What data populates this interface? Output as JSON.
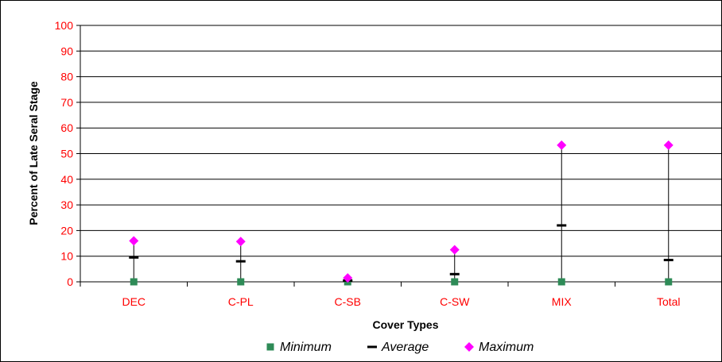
{
  "chart_data": {
    "type": "scatter",
    "title": "",
    "xlabel": "Cover Types",
    "ylabel": "Percent of Late Seral Stage",
    "ylim": [
      0,
      100
    ],
    "yticks": [
      "0",
      "10",
      "20",
      "30",
      "40",
      "50",
      "60",
      "70",
      "80",
      "90",
      "100"
    ],
    "categories": [
      "DEC",
      "C-PL",
      "C-SB",
      "C-SW",
      "MIX",
      "Total"
    ],
    "series": [
      {
        "name": "Minimum",
        "values": [
          0,
          0,
          0,
          0,
          0,
          0
        ],
        "color": "#2e8b57",
        "marker": "square"
      },
      {
        "name": "Average",
        "values": [
          9.5,
          8,
          0.5,
          3,
          22,
          8.5
        ],
        "color": "#000000",
        "marker": "dash"
      },
      {
        "name": "Maximum",
        "values": [
          16,
          15.7,
          1.5,
          12.5,
          53.3,
          53.3
        ],
        "color": "#ff00ff",
        "marker": "diamond"
      }
    ],
    "grid": true,
    "legend_position": "bottom",
    "colors": {
      "tick_labels": "#ff0000",
      "gridline": "#000000",
      "range_line": "#000000"
    }
  }
}
